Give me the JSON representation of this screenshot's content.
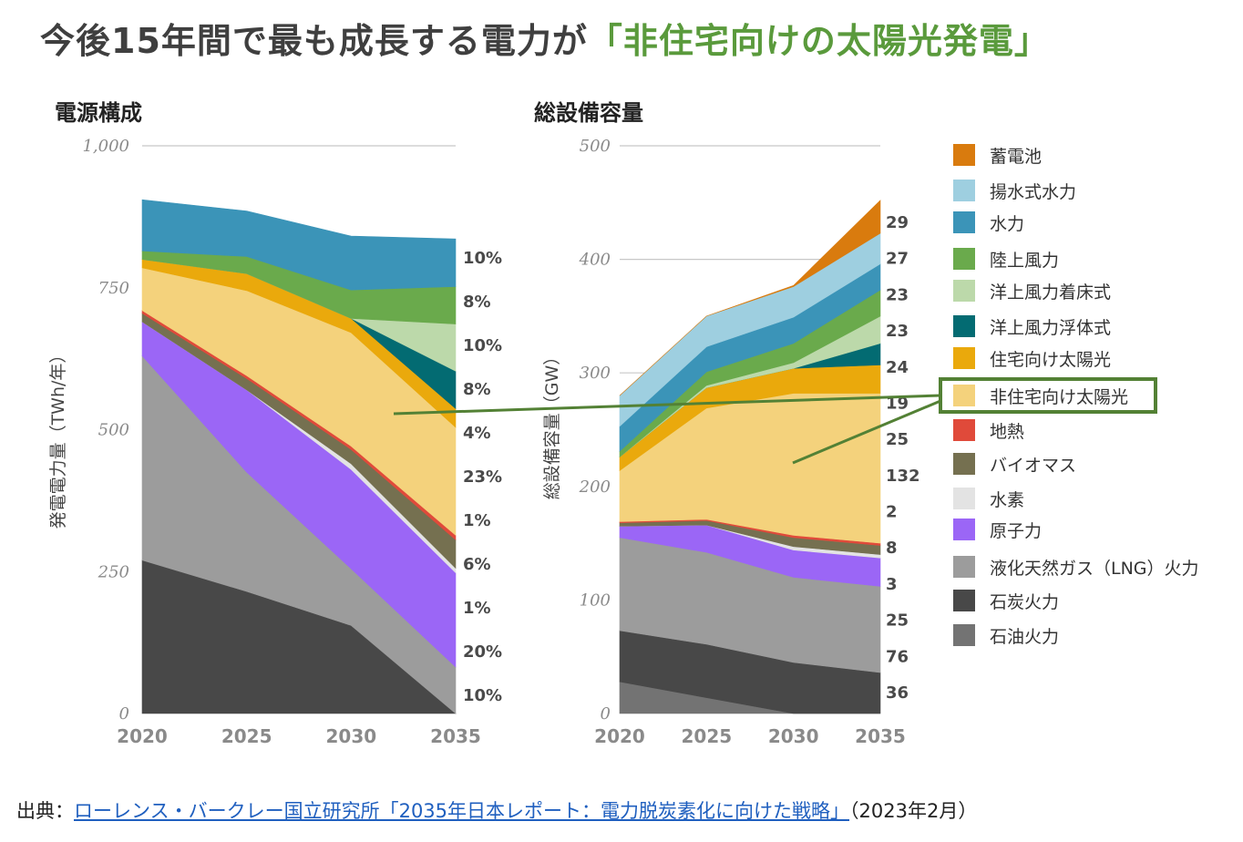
{
  "header": {
    "title_main": "今後15年間で最も成長する電力が",
    "title_highlight": "「非住宅向けの太陽光発電」",
    "highlight_color": "#5a9a3c"
  },
  "source": {
    "prefix": "出典：",
    "link_text": "ローレンス・バークレー国立研究所「2035年日本レポート：電力脱炭素化に向けた戦略」",
    "suffix": "（2023年2月）"
  },
  "legend": [
    {
      "label": "蓄電池",
      "color": "#d97b0e"
    },
    {
      "label": "揚水式水力",
      "color": "#9ecfe0"
    },
    {
      "label": "水力",
      "color": "#3b94b8"
    },
    {
      "label": "陸上風力",
      "color": "#6aaa4c"
    },
    {
      "label": "洋上風力着床式",
      "color": "#bcd9aa"
    },
    {
      "label": "洋上風力浮体式",
      "color": "#036b72"
    },
    {
      "label": "住宅向け太陽光",
      "color": "#eaa90c"
    },
    {
      "label": "非住宅向け太陽光",
      "color": "#f4d27c"
    },
    {
      "label": "地熱",
      "color": "#e04a3a"
    },
    {
      "label": "バイオマス",
      "color": "#757050"
    },
    {
      "label": "水素",
      "color": "#e3e3e3"
    },
    {
      "label": "原子力",
      "color": "#9b66f6"
    },
    {
      "label": "液化天然ガス（LNG）火力",
      "color": "#9c9c9c"
    },
    {
      "label": "石炭火力",
      "color": "#484848"
    },
    {
      "label": "石油火力",
      "color": "#737373"
    }
  ],
  "chart_data": [
    {
      "type": "area",
      "title": "電源構成",
      "ylabel": "発電電力量（TWh/年）",
      "xlabel": "",
      "ylim": [
        0,
        1000
      ],
      "yticks": [
        "0",
        "250",
        "500",
        "750",
        "1,000"
      ],
      "xticks": [
        "2020",
        "2025",
        "2030",
        "2035"
      ],
      "x": [
        2020,
        2025,
        2030,
        2035
      ],
      "series": [
        {
          "name": "石炭火力",
          "values": [
            270,
            215,
            155,
            0
          ]
        },
        {
          "name": "液化天然ガス（LNG）火力",
          "values": [
            360,
            210,
            100,
            82
          ]
        },
        {
          "name": "原子力",
          "values": [
            60,
            145,
            175,
            166
          ]
        },
        {
          "name": "水素",
          "values": [
            0,
            0,
            10,
            8
          ]
        },
        {
          "name": "バイオマス",
          "values": [
            15,
            20,
            25,
            50
          ]
        },
        {
          "name": "地熱",
          "values": [
            5,
            5,
            6,
            8
          ]
        },
        {
          "name": "非住宅向け太陽光",
          "values": [
            75,
            150,
            200,
            190
          ]
        },
        {
          "name": "住宅向け太陽光",
          "values": [
            15,
            30,
            25,
            33
          ]
        },
        {
          "name": "洋上風力浮体式",
          "values": [
            0,
            0,
            0,
            66
          ]
        },
        {
          "name": "洋上風力着床式",
          "values": [
            0,
            0,
            0,
            83
          ]
        },
        {
          "name": "陸上風力",
          "values": [
            15,
            30,
            50,
            66
          ]
        },
        {
          "name": "水力",
          "values": [
            90,
            80,
            95,
            84
          ]
        }
      ],
      "end_labels": [
        "10%",
        "8%",
        "10%",
        "8%",
        "4%",
        "23%",
        "1%",
        "6%",
        "1%",
        "20%",
        "10%"
      ]
    },
    {
      "type": "area",
      "title": "総設備容量",
      "ylabel": "総設備容量（GW）",
      "xlabel": "",
      "ylim": [
        0,
        500
      ],
      "yticks": [
        "0",
        "100",
        "200",
        "300",
        "400",
        "500"
      ],
      "xticks": [
        "2020",
        "2025",
        "2030",
        "2035"
      ],
      "x": [
        2020,
        2025,
        2030,
        2035
      ],
      "series": [
        {
          "name": "石油火力",
          "values": [
            28,
            14,
            0,
            0
          ]
        },
        {
          "name": "石炭火力",
          "values": [
            45,
            47,
            45,
            36
          ]
        },
        {
          "name": "液化天然ガス（LNG）火力",
          "values": [
            82,
            81,
            75,
            76
          ]
        },
        {
          "name": "原子力",
          "values": [
            10,
            24,
            24,
            25
          ]
        },
        {
          "name": "水素",
          "values": [
            0,
            0,
            3,
            3
          ]
        },
        {
          "name": "バイオマス",
          "values": [
            3,
            4,
            8,
            8
          ]
        },
        {
          "name": "地熱",
          "values": [
            1,
            1,
            2,
            2
          ]
        },
        {
          "name": "非住宅向け太陽光",
          "values": [
            45,
            98,
            125,
            132
          ]
        },
        {
          "name": "住宅向け太陽光",
          "values": [
            12,
            18,
            22,
            25
          ]
        },
        {
          "name": "洋上風力浮体式",
          "values": [
            0,
            0,
            0,
            19
          ]
        },
        {
          "name": "洋上風力着床式",
          "values": [
            0,
            2,
            5,
            24
          ]
        },
        {
          "name": "陸上風力",
          "values": [
            5,
            12,
            17,
            23
          ]
        },
        {
          "name": "水力",
          "values": [
            22,
            22,
            23,
            23
          ]
        },
        {
          "name": "揚水式水力",
          "values": [
            27,
            27,
            27,
            27
          ]
        },
        {
          "name": "蓄電池",
          "values": [
            0,
            0,
            1,
            29
          ]
        }
      ],
      "end_labels": [
        "29",
        "27",
        "23",
        "23",
        "24",
        "19",
        "25",
        "132",
        "2",
        "8",
        "3",
        "25",
        "76",
        "36"
      ]
    }
  ]
}
